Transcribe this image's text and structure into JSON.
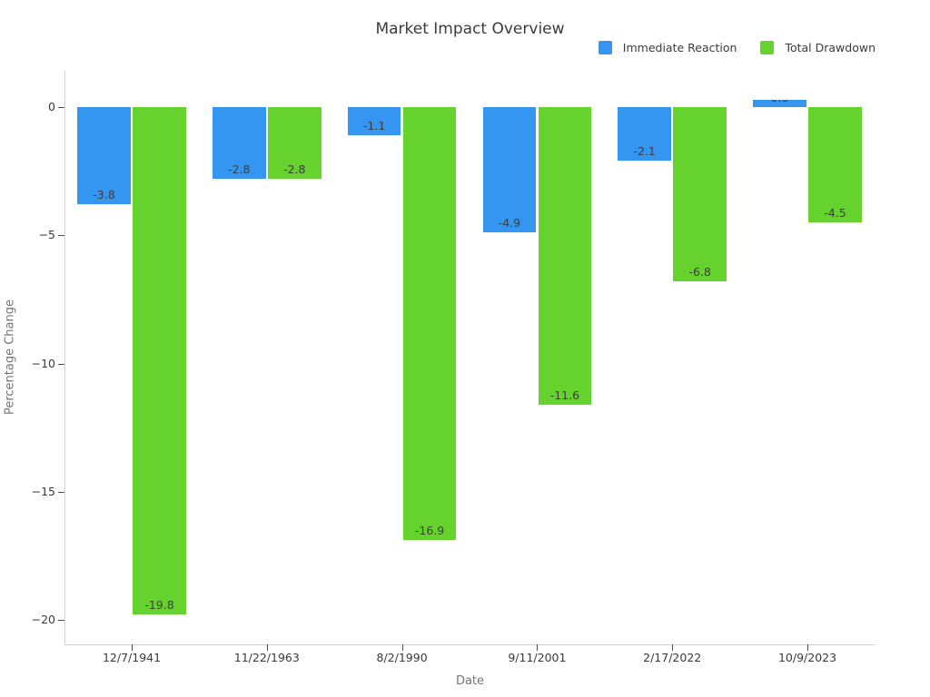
{
  "title": "Market Impact Overview",
  "legend": {
    "items": [
      {
        "label": "Immediate Reaction",
        "color": "#3496f0"
      },
      {
        "label": "Total Drawdown",
        "color": "#66d22d"
      }
    ]
  },
  "axes": {
    "xlabel": "Date",
    "ylabel": "Percentage Change"
  },
  "chart_data": {
    "type": "bar",
    "title": "Market Impact Overview",
    "xlabel": "Date",
    "ylabel": "Percentage Change",
    "categories": [
      "12/7/1941",
      "11/22/1963",
      "8/2/1990",
      "9/11/2001",
      "2/17/2022",
      "10/9/2023"
    ],
    "series": [
      {
        "name": "Immediate Reaction",
        "color": "#3496f0",
        "values": [
          -3.8,
          -2.8,
          -1.1,
          -4.9,
          -2.1,
          0.3
        ]
      },
      {
        "name": "Total Drawdown",
        "color": "#66d22d",
        "values": [
          -19.8,
          -2.8,
          -16.9,
          -11.6,
          -6.8,
          -4.5
        ]
      }
    ],
    "bar_labels": true,
    "yticks": [
      0,
      -5,
      -10,
      -15,
      -20
    ],
    "ylim": [
      -21,
      1.4
    ],
    "grid": false,
    "legend_position": "top-right"
  }
}
